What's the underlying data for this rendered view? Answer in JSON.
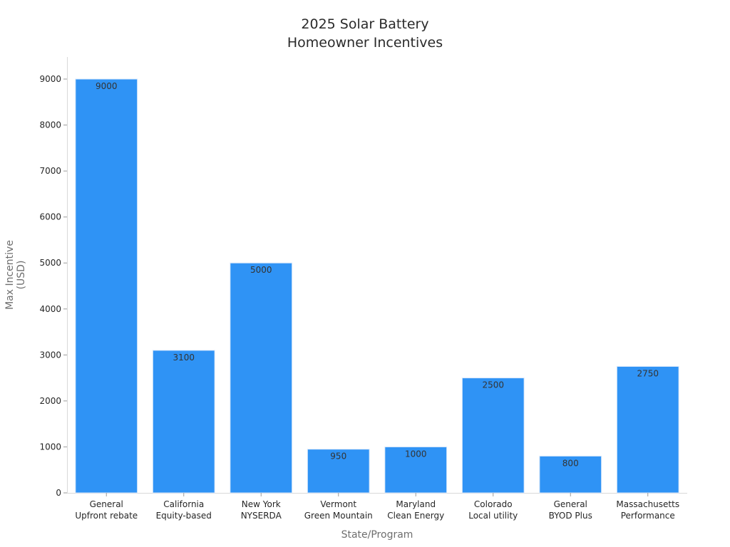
{
  "chart_data": {
    "type": "bar",
    "title": [
      "2025 Solar Battery",
      "Homeowner Incentives"
    ],
    "xlabel": "State/Program",
    "ylabel": [
      "Max Incentive",
      "(USD)"
    ],
    "categories": [
      [
        "General",
        "Upfront rebate"
      ],
      [
        "California",
        "Equity-based"
      ],
      [
        "New York",
        "NYSERDA"
      ],
      [
        "Vermont",
        "Green Mountain"
      ],
      [
        "Maryland",
        "Clean Energy"
      ],
      [
        "Colorado",
        "Local utility"
      ],
      [
        "General",
        "BYOD Plus"
      ],
      [
        "Massachusetts",
        "Performance"
      ]
    ],
    "values": [
      9000,
      3100,
      5000,
      950,
      1000,
      2500,
      800,
      2750
    ],
    "data_labels": [
      "9000",
      "3100",
      "5000",
      "950",
      "1000",
      "2500",
      "800",
      "2750"
    ],
    "ylim": [
      0,
      9500
    ],
    "yticks": [
      0,
      1000,
      2000,
      3000,
      4000,
      5000,
      6000,
      7000,
      8000,
      9000
    ],
    "grid": false,
    "legend": "none",
    "bar_color": "#2f93f5"
  }
}
